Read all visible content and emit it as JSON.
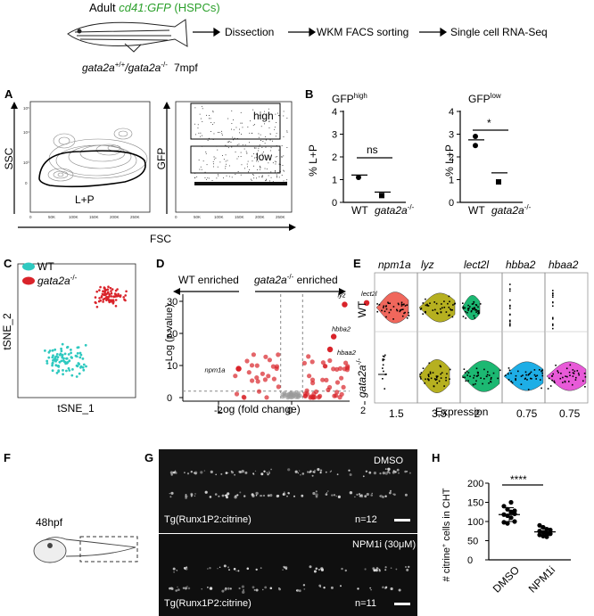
{
  "header": {
    "adult": "Adult",
    "transgene": "cd41:GFP",
    "hspc": "(HSPCs)",
    "genotype": "gata2a",
    "genotype_sup1": "+/+",
    "genotype_slash": "/gata2a",
    "genotype_sup2": "-/-",
    "age": "7mpf",
    "steps": [
      "Dissection",
      "WKM FACS sorting",
      "Single cell RNA-Seq"
    ]
  },
  "panel_labels": {
    "A": "A",
    "B": "B",
    "C": "C",
    "D": "D",
    "E": "E",
    "F": "F",
    "G": "G",
    "H": "H"
  },
  "panelA": {
    "ssc_label": "SSC",
    "gfp_label": "GFP",
    "fsc_label": "FSC",
    "gate_label": "L+P",
    "high_label": "high",
    "low_label": "low",
    "x_ticks": [
      "0",
      "50K",
      "100K",
      "150K",
      "200K",
      "250K"
    ],
    "y_ticks": [
      "10⁵",
      "10⁴",
      "10³",
      "0"
    ]
  },
  "panelB": {
    "title1": "GFP",
    "title1_sup": "high",
    "title2": "GFP",
    "title2_sup": "low",
    "ylabel": "% L+P",
    "y_ticks": [
      "0",
      "1",
      "2",
      "3",
      "4"
    ],
    "wt": "WT",
    "mut": "gata2a",
    "mut_sup": "-/-",
    "sig1": "ns",
    "sig2": "*"
  },
  "panelC": {
    "legend_wt": "WT",
    "legend_mut": "gata2a",
    "legend_mut_sup": "-/-",
    "xlabel": "tSNE_1",
    "ylabel": "tSNE_2",
    "wt_color": "#2fc9c0",
    "mut_color": "#d9232a"
  },
  "panelD": {
    "left_arrow": "WT enriched",
    "right_arrow_gene": "gata2a",
    "right_arrow_sup": "-/-",
    "right_arrow_tail": " enriched",
    "xlabel": "Log (fold change)",
    "ylabel": "-Log (p value)",
    "x_ticks": [
      "-2",
      "0",
      "2"
    ],
    "y_ticks": [
      "0",
      "10",
      "20",
      "30"
    ],
    "genes": [
      "npm1a",
      "lyz",
      "lect2l",
      "hbba2",
      "hbaa2"
    ]
  },
  "panelE": {
    "genes": [
      "npm1a",
      "lyz",
      "lect2l",
      "hbba2",
      "hbaa2"
    ],
    "x_ticks": [
      "1.5",
      "3.5",
      "2",
      "0.75",
      "0.75"
    ],
    "xlabel": "Expression",
    "row_wt": "WT",
    "row_mut": "gata2a",
    "row_mut_sup": "-/-",
    "colors": [
      "#f0675c",
      "#b6b020",
      "#1cb872",
      "#1eaee6",
      "#e85ad8"
    ]
  },
  "panelF": {
    "stage": "48hpf"
  },
  "panelG": {
    "top_condition": "DMSO",
    "top_line": "Tg(Runx1P2:citrine)",
    "top_n": "n=12",
    "bottom_condition": "NPM1i (30μM)",
    "bottom_line": "Tg(Runx1P2:citrine)",
    "bottom_n": "n=11"
  },
  "panelH": {
    "ylabel_pre": "# citrine",
    "ylabel_sup": "+",
    "ylabel_post": " cells in CHT",
    "y_ticks": [
      "0",
      "50",
      "100",
      "150",
      "200"
    ],
    "categories": [
      "DMSO",
      "NPM1i"
    ],
    "sig": "****",
    "means": [
      118,
      73
    ]
  }
}
